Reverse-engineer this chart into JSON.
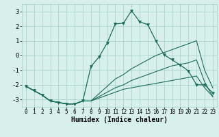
{
  "xlabel": "Humidex (Indice chaleur)",
  "x": [
    0,
    1,
    2,
    3,
    4,
    5,
    6,
    7,
    8,
    9,
    10,
    11,
    12,
    13,
    14,
    15,
    16,
    17,
    18,
    19,
    20,
    21,
    22,
    23
  ],
  "line1": [
    -2.1,
    -2.4,
    -2.7,
    -3.1,
    -3.2,
    -3.3,
    -3.3,
    -3.1,
    -0.75,
    -0.1,
    0.85,
    2.15,
    2.2,
    3.05,
    2.3,
    2.1,
    1.0,
    0.05,
    -0.3,
    -0.65,
    -1.05,
    -2.0,
    -2.0,
    -2.55
  ],
  "line2": [
    -2.1,
    -2.4,
    -2.7,
    -3.1,
    -3.2,
    -3.3,
    -3.3,
    -3.1,
    -3.1,
    -2.6,
    -2.1,
    -1.6,
    -1.3,
    -0.9,
    -0.6,
    -0.3,
    0.0,
    0.2,
    0.4,
    0.6,
    0.8,
    1.0,
    -1.0,
    -2.2
  ],
  "line3": [
    -2.1,
    -2.4,
    -2.7,
    -3.1,
    -3.2,
    -3.3,
    -3.3,
    -3.1,
    -3.1,
    -2.8,
    -2.5,
    -2.2,
    -2.0,
    -1.7,
    -1.5,
    -1.3,
    -1.1,
    -0.9,
    -0.7,
    -0.6,
    -0.5,
    -0.3,
    -1.8,
    -2.8
  ],
  "line4": [
    -2.1,
    -2.4,
    -2.7,
    -3.1,
    -3.2,
    -3.3,
    -3.3,
    -3.1,
    -3.1,
    -2.9,
    -2.7,
    -2.5,
    -2.3,
    -2.2,
    -2.1,
    -2.0,
    -1.9,
    -1.8,
    -1.7,
    -1.6,
    -1.5,
    -1.4,
    -2.2,
    -2.8
  ],
  "bg_color": "#d8f0ec",
  "line_color": "#1a6b5a",
  "grid_color": "#a0cfc8",
  "ylim": [
    -3.5,
    3.5
  ],
  "yticks": [
    -3,
    -2,
    -1,
    0,
    1,
    2,
    3
  ],
  "xticks": [
    0,
    1,
    2,
    3,
    4,
    5,
    6,
    7,
    8,
    9,
    10,
    11,
    12,
    13,
    14,
    15,
    16,
    17,
    18,
    19,
    20,
    21,
    22,
    23
  ],
  "xlim": [
    -0.5,
    23.5
  ]
}
